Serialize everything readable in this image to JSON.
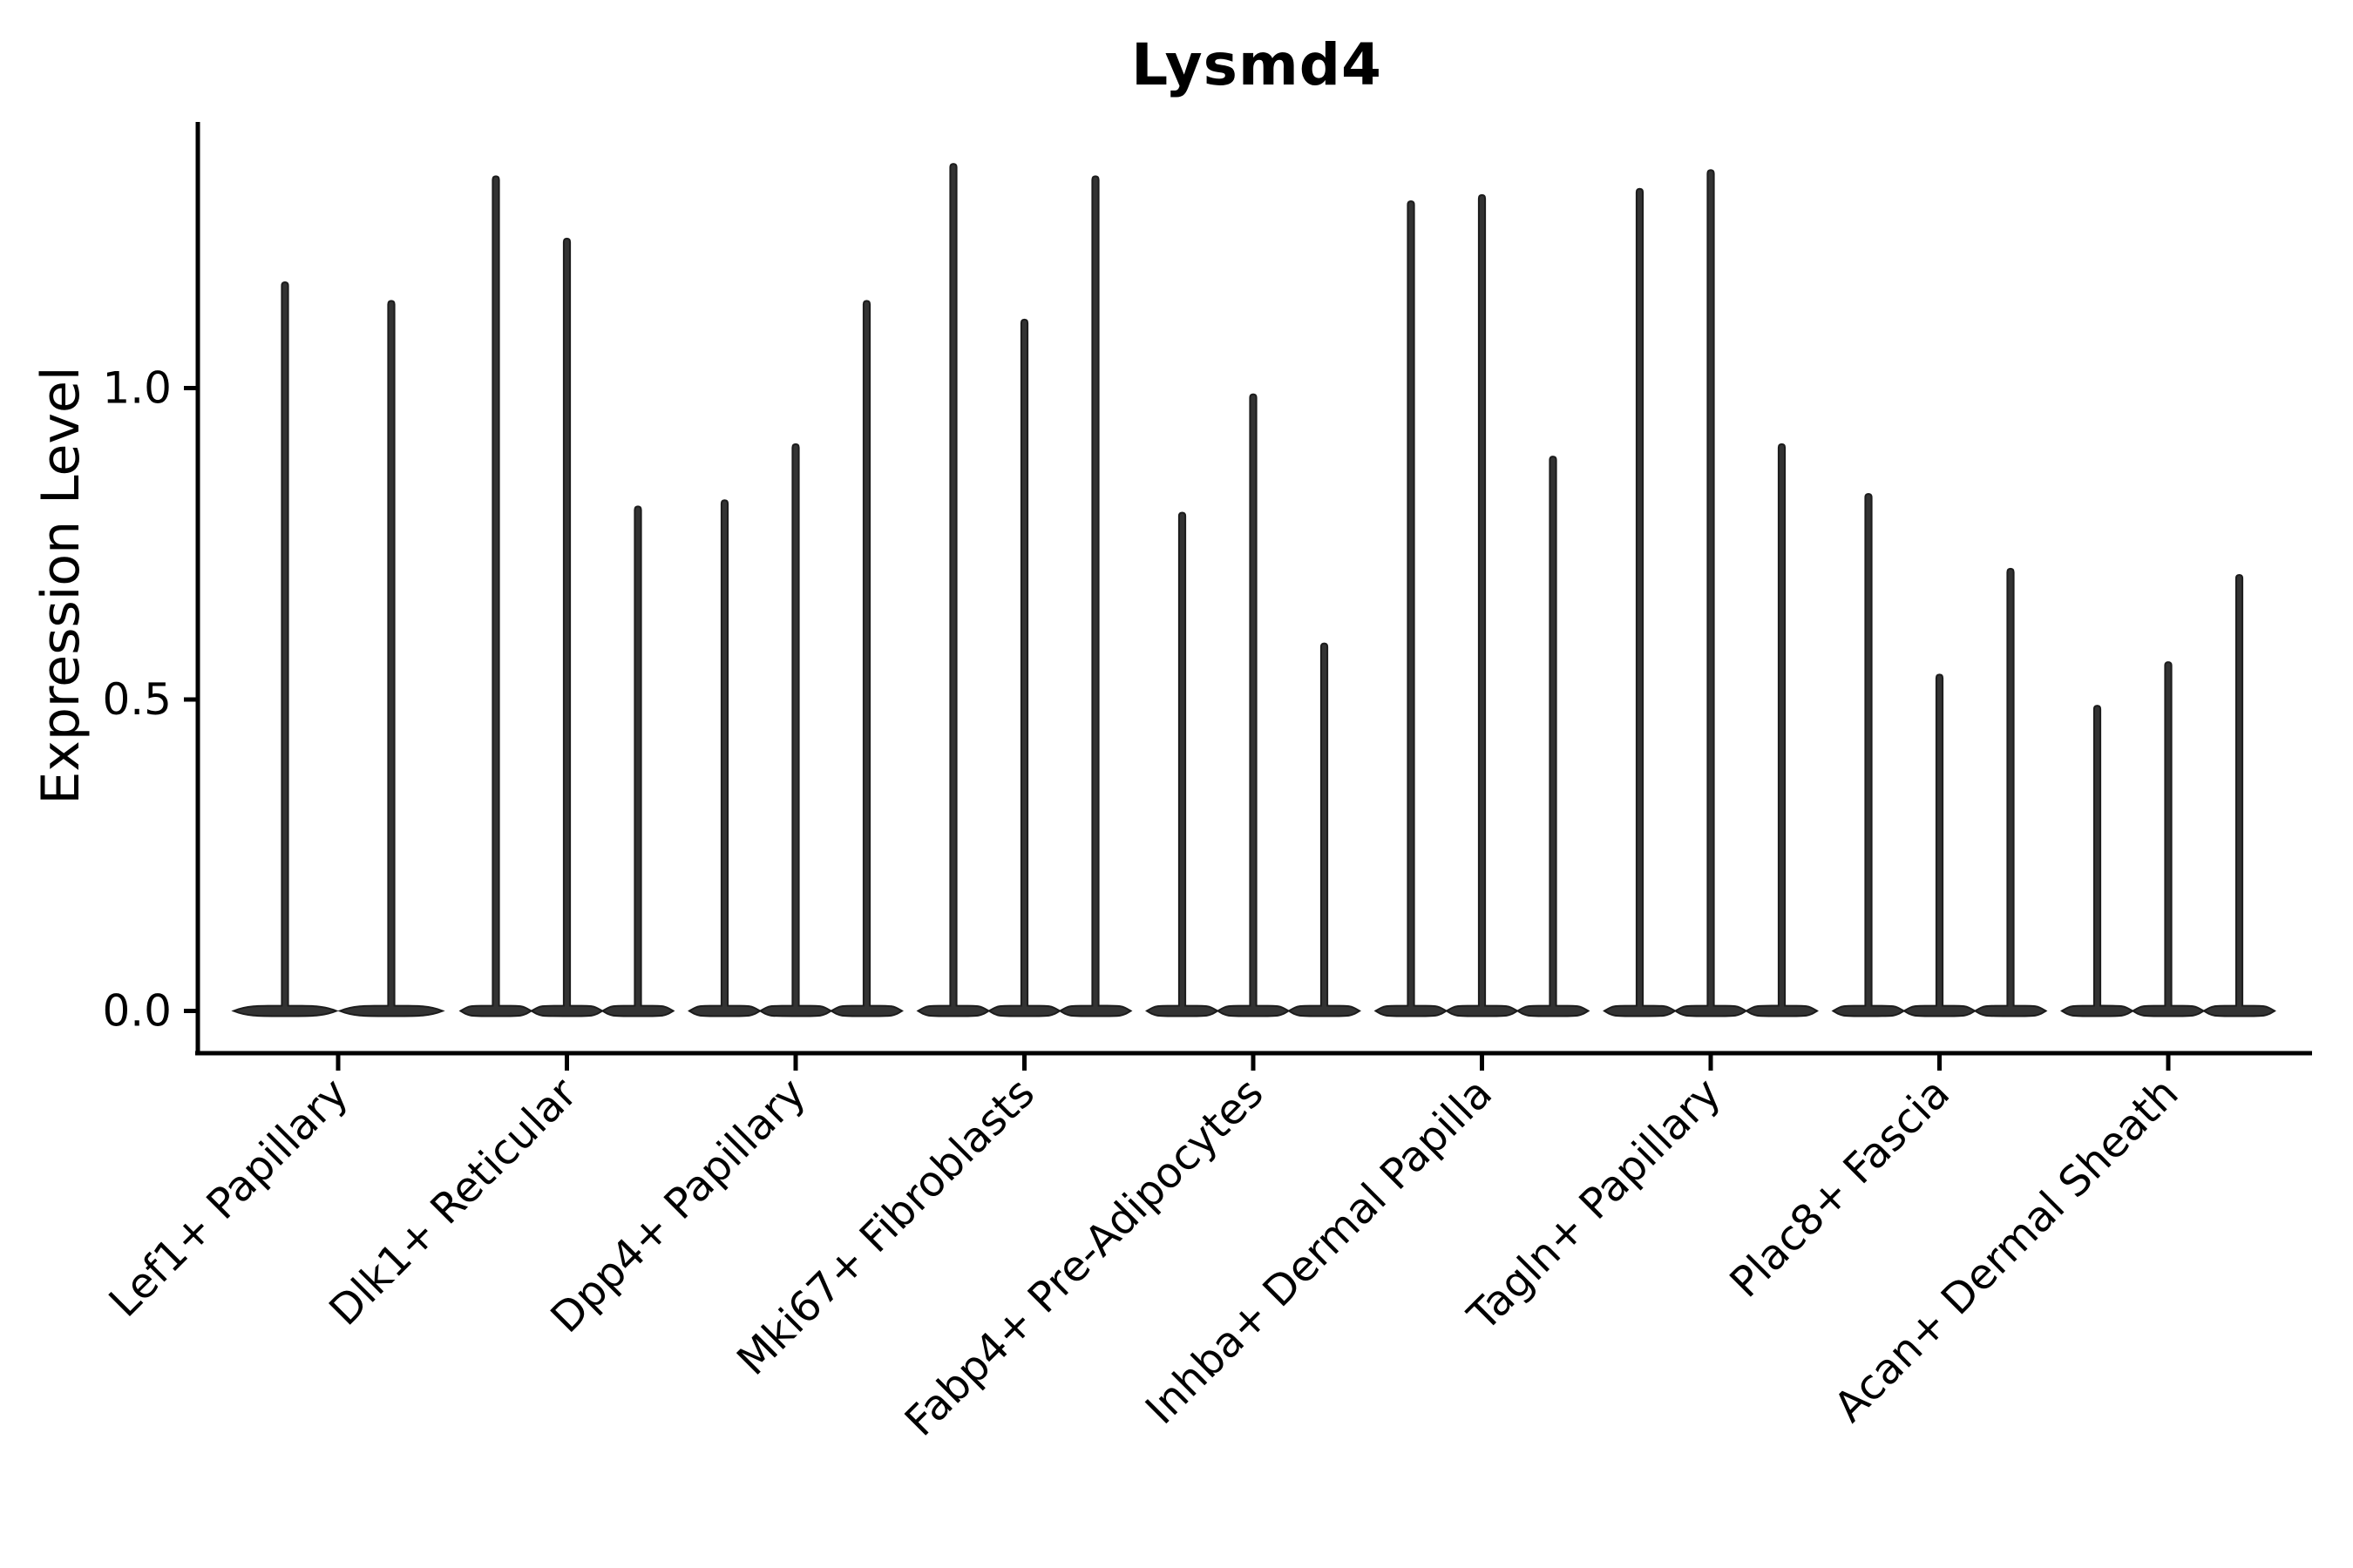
{
  "chart_data": {
    "type": "violin",
    "title": "Lysmd4",
    "xlabel": "",
    "ylabel": "Expression Level",
    "ytick_labels": [
      "0.0",
      "0.5",
      "1.0"
    ],
    "ytick_values": [
      0.0,
      0.5,
      1.0
    ],
    "ylim": [
      -0.07,
      1.43
    ],
    "grid": false,
    "legend": false,
    "x_label_rotation_degrees": 45,
    "categories": [
      "Lef1+ Papillary",
      "Dlk1+ Reticular",
      "Dpp4+ Papillary",
      "Mki67+ Fibroblasts",
      "Fabp4+ Pre-Adipocytes",
      "Inhba+ Dermal Papilla",
      "Tagln+ Papillary",
      "Plac8+ Fascia",
      "Acan+ Dermal Sheath"
    ],
    "groups": [
      {
        "category": "Lef1+ Papillary",
        "violin_peak_values": [
          1.17,
          1.14
        ]
      },
      {
        "category": "Dlk1+ Reticular",
        "violin_peak_values": [
          1.34,
          1.24,
          0.81
        ]
      },
      {
        "category": "Dpp4+ Papillary",
        "violin_peak_values": [
          0.82,
          0.91,
          1.14
        ]
      },
      {
        "category": "Mki67+ Fibroblasts",
        "violin_peak_values": [
          1.36,
          1.11,
          1.34
        ]
      },
      {
        "category": "Fabp4+ Pre-Adipocytes",
        "violin_peak_values": [
          0.8,
          0.99,
          0.59
        ]
      },
      {
        "category": "Inhba+ Dermal Papilla",
        "violin_peak_values": [
          1.3,
          1.31,
          0.89
        ]
      },
      {
        "category": "Tagln+ Papillary",
        "violin_peak_values": [
          1.32,
          1.35,
          0.91
        ]
      },
      {
        "category": "Plac8+ Fascia",
        "violin_peak_values": [
          0.83,
          0.54,
          0.71
        ]
      },
      {
        "category": "Acan+ Dermal Sheath",
        "violin_peak_values": [
          0.49,
          0.56,
          0.7
        ]
      }
    ],
    "violin_fill_color": "#333333",
    "violin_edge_color": "#1c1c1c",
    "axis_color": "#000000",
    "background_color": "#ffffff"
  }
}
